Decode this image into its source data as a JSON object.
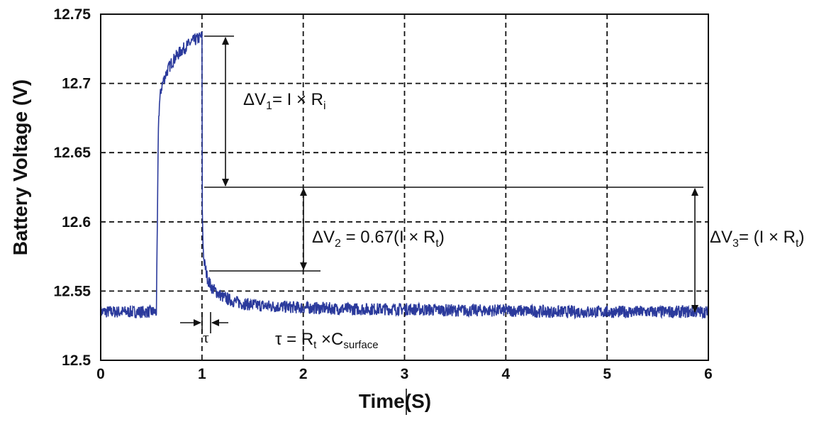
{
  "chart_data": {
    "type": "line",
    "ylabel": "Battery Voltage (V)",
    "xlabel": "Time(S)",
    "xlim": [
      0,
      6
    ],
    "ylim": [
      12.5,
      12.75
    ],
    "x_ticks": [
      0,
      1,
      2,
      3,
      4,
      5,
      6
    ],
    "x_tick_labels": [
      "0",
      "1",
      "2",
      "3",
      "4",
      "5",
      "6"
    ],
    "y_ticks": [
      12.5,
      12.55,
      12.6,
      12.65,
      12.7,
      12.75
    ],
    "y_tick_labels": [
      "12.5",
      "12.55",
      "12.6",
      "12.65",
      "12.7",
      "12.75"
    ],
    "grid": true,
    "line_color": "#2b3a9c",
    "series": [
      {
        "x": [
          0,
          0.1,
          0.2,
          0.3,
          0.4,
          0.5,
          0.55,
          0.56,
          0.57,
          0.58,
          0.59,
          0.6,
          0.62,
          0.65,
          0.7,
          0.75,
          0.8,
          0.85,
          0.9,
          0.95,
          1.0,
          1.002,
          1.005,
          1.01,
          1.02,
          1.04,
          1.06,
          1.08,
          1.1,
          1.15,
          1.2,
          1.3,
          1.4,
          1.5,
          1.7,
          2.0,
          2.5,
          3.0,
          3.5,
          4.0,
          4.5,
          5.0,
          5.5,
          6.0
        ],
        "y": [
          12.535,
          12.535,
          12.535,
          12.535,
          12.535,
          12.535,
          12.535,
          12.6,
          12.67,
          12.685,
          12.692,
          12.697,
          12.702,
          12.708,
          12.715,
          12.72,
          12.724,
          12.727,
          12.73,
          12.732,
          12.734,
          12.62,
          12.6,
          12.585,
          12.572,
          12.564,
          12.558,
          12.555,
          12.552,
          12.549,
          12.546,
          12.543,
          12.541,
          12.54,
          12.539,
          12.538,
          12.537,
          12.537,
          12.536,
          12.536,
          12.535,
          12.535,
          12.535,
          12.535
        ]
      }
    ],
    "annotations": {
      "dv1_prefix": "ΔV",
      "dv1_sub": "1",
      "dv1_mid": "= I × R",
      "dv1_end": "i",
      "dv2_prefix": "ΔV",
      "dv2_sub": "2",
      "dv2_mid": " = 0.67(I × R",
      "dv2_sub2": "t",
      "dv2_end": ")",
      "dv3_prefix": "ΔV",
      "dv3_sub": "3",
      "dv3_mid": "= (I × R",
      "dv3_sub2": "t",
      "dv3_end": ")",
      "tau_label": "τ",
      "tau_eq_prefix": "τ = R",
      "tau_eq_sub": "t",
      "tau_eq_mid": " ×C",
      "tau_eq_sub2": "surface"
    }
  }
}
